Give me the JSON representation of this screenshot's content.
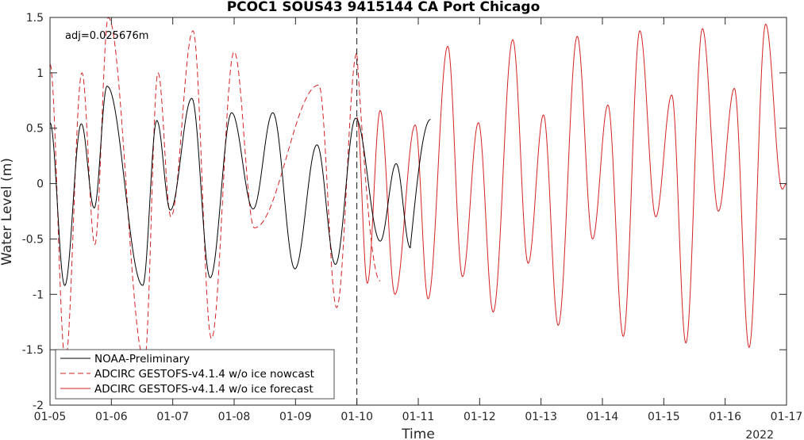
{
  "chart_data": {
    "type": "line",
    "title": "PCOC1 SOUS43 9415144 CA Port Chicago",
    "xlabel": "Time",
    "ylabel": "Water Level (m)",
    "x_ticks": [
      "01-05",
      "01-06",
      "01-07",
      "01-08",
      "01-09",
      "01-10",
      "01-11",
      "01-12",
      "01-13",
      "01-14",
      "01-15",
      "01-16",
      "01-17"
    ],
    "x_year_label": "2022",
    "xlim": [
      "2022-01-05",
      "2022-01-17"
    ],
    "ylim": [
      -2,
      1.5
    ],
    "y_ticks": [
      -2,
      -1.5,
      -1,
      -0.5,
      0,
      0.5,
      1,
      1.5
    ],
    "y_tick_labels": [
      "-2",
      "-1.5",
      "-1",
      "-0.5",
      "0",
      "0.5",
      "1",
      "1.5"
    ],
    "annotation": "adj=0.025676m",
    "forecast_start": "2022-01-10",
    "legend_position": "bottom-left",
    "grid": false,
    "series": [
      {
        "name": "NOAA-Preliminary",
        "color": "#000000",
        "style": "solid",
        "extrema_t": [
          0.0,
          0.24,
          0.51,
          0.72,
          0.93,
          1.51,
          1.74,
          1.96,
          2.31,
          2.61,
          2.96,
          3.31,
          3.63,
          3.99,
          4.35,
          4.65,
          4.98,
          5.38,
          5.64,
          5.87
        ],
        "extrema_v": [
          0.55,
          -0.92,
          0.54,
          -0.22,
          0.88,
          -0.92,
          0.57,
          -0.24,
          0.77,
          -0.85,
          0.64,
          -0.23,
          0.64,
          -0.77,
          0.35,
          -0.73,
          0.59,
          -0.52,
          0.18,
          -0.58
        ],
        "end": [
          6.2,
          0.58
        ]
      },
      {
        "name": "ADCIRC GESTOFS-v4.1.4 w/o ice nowcast",
        "color": "#d62222",
        "style": "dashed",
        "extrema_t": [
          0.0,
          0.25,
          0.52,
          0.73,
          0.95,
          1.54,
          1.76,
          1.97,
          2.33,
          2.63,
          3.0,
          3.33,
          4.38,
          4.67,
          5.0
        ],
        "extrema_v": [
          1.08,
          -1.6,
          1.0,
          -0.55,
          1.5,
          -1.6,
          1.0,
          -0.3,
          1.38,
          -1.4,
          1.19,
          -0.4,
          0.89,
          -1.12,
          1.18
        ],
        "end": [
          5.38,
          -0.88
        ]
      },
      {
        "name": "ADCIRC GESTOFS-v4.1.4 w/o ice forecast",
        "color": "#d62222",
        "style": "solid",
        "extrema_t": [
          5.0,
          5.17,
          5.38,
          5.62,
          5.95,
          6.16,
          6.48,
          6.72,
          6.98,
          7.22,
          7.54,
          7.79,
          8.04,
          8.28,
          8.59,
          8.84,
          9.09,
          9.34,
          9.61,
          9.87,
          10.13,
          10.36,
          10.63,
          10.89,
          11.15,
          11.39,
          11.66,
          11.93,
          12.0
        ],
        "extrema_v": [
          0.6,
          -0.9,
          0.66,
          -1.0,
          0.53,
          -1.04,
          1.24,
          -0.84,
          0.55,
          -1.16,
          1.3,
          -0.72,
          0.62,
          -1.28,
          1.33,
          -0.5,
          0.71,
          -1.38,
          1.38,
          -0.3,
          0.8,
          -1.44,
          1.4,
          -0.25,
          0.86,
          -1.48,
          1.44,
          -0.05,
          0.0
        ]
      }
    ]
  }
}
